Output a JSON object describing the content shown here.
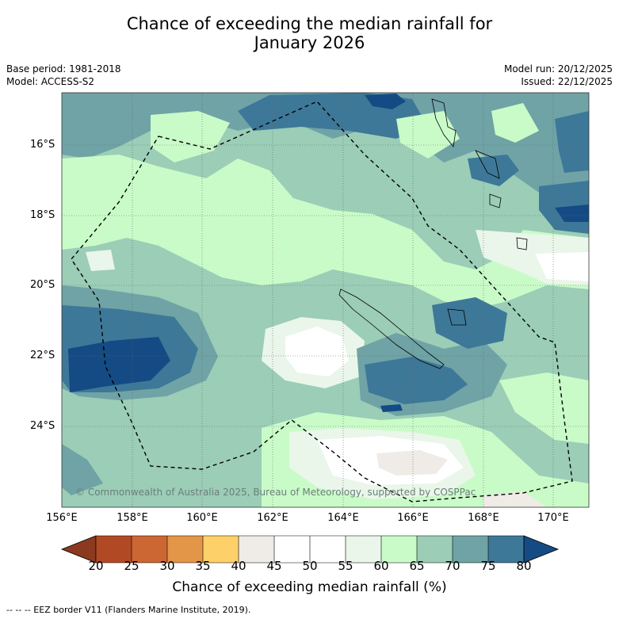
{
  "title_line1": "Chance of exceeding the median rainfall for",
  "title_line2": "January 2026",
  "meta_left": {
    "base_period": "Base period: 1981-2018",
    "model": "Model: ACCESS-S2"
  },
  "meta_right": {
    "model_run": "Model run: 20/12/2025",
    "issued": "Issued: 22/12/2025"
  },
  "latitude_labels": [
    "16°S",
    "18°S",
    "20°S",
    "22°S",
    "24°S"
  ],
  "longitude_labels": [
    "156°E",
    "158°E",
    "160°E",
    "162°E",
    "164°E",
    "166°E",
    "168°E",
    "170°E"
  ],
  "copyright": "© Commonwealth of Australia 2025, Bureau of Meteorology, supported by COSPPac",
  "colorbar": {
    "title": "Chance of exceeding median rainfall (%)",
    "ticks": [
      "20",
      "25",
      "30",
      "35",
      "40",
      "45",
      "50",
      "55",
      "60",
      "65",
      "70",
      "75",
      "80"
    ],
    "colors": {
      "below_20": "#8b3a1f",
      "20_25": "#b14a24",
      "25_30": "#cc6633",
      "30_35": "#e39548",
      "35_40": "#fdd06a",
      "40_45": "#efebe6",
      "45_50": "#ffffff",
      "50_55": "#ffffff",
      "55_60": "#e9f6e9",
      "60_65": "#c9fbc8",
      "65_70": "#9bcdb7",
      "70_75": "#6fa3a6",
      "75_80": "#3e7898",
      "above_80": "#154b84"
    }
  },
  "footnote": "-- -- -- EEZ border V11 (Flanders Marine Institute, 2019)."
}
